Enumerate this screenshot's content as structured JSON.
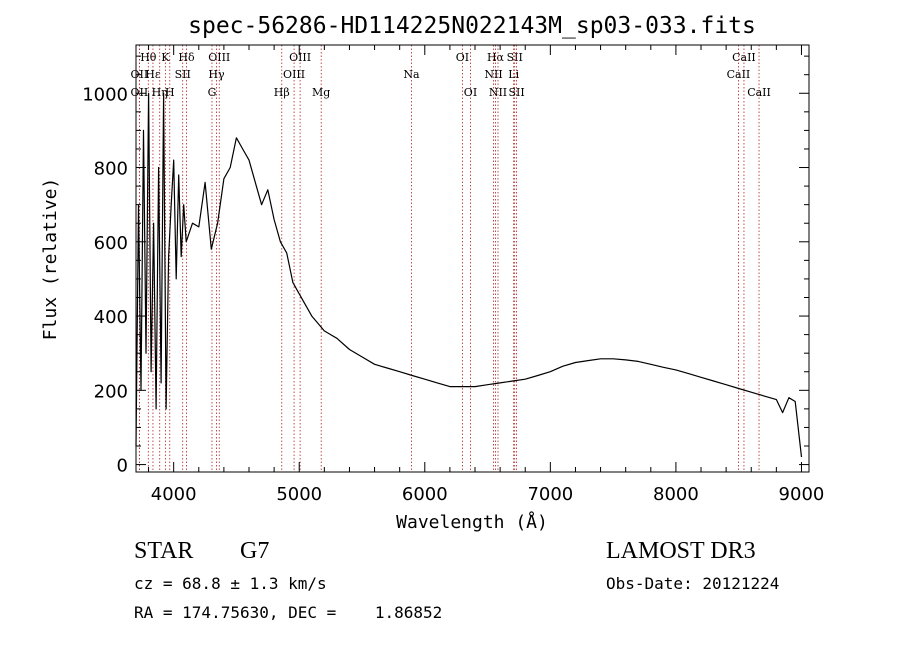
{
  "chart_data": {
    "type": "line",
    "title": "spec-56286-HD114225N022143M_sp03-033.fits",
    "xlabel": "Wavelength (Å)",
    "ylabel": "Flux (relative)",
    "xlim": [
      3700,
      9060
    ],
    "ylim": [
      -20,
      1130
    ],
    "x_ticks": [
      4000,
      5000,
      6000,
      7000,
      8000,
      9000
    ],
    "y_ticks": [
      0,
      200,
      400,
      600,
      800,
      1000
    ],
    "grid": false,
    "series": [
      {
        "name": "flux",
        "x": [
          3700,
          3720,
          3740,
          3760,
          3780,
          3800,
          3820,
          3840,
          3860,
          3880,
          3900,
          3920,
          3940,
          3960,
          3980,
          4000,
          4020,
          4040,
          4060,
          4080,
          4100,
          4150,
          4200,
          4250,
          4300,
          4350,
          4400,
          4450,
          4500,
          4550,
          4600,
          4650,
          4700,
          4750,
          4800,
          4850,
          4900,
          4950,
          5000,
          5050,
          5100,
          5150,
          5200,
          5250,
          5300,
          5400,
          5500,
          5600,
          5700,
          5800,
          5900,
          6000,
          6100,
          6200,
          6300,
          6400,
          6500,
          6600,
          6700,
          6800,
          6900,
          7000,
          7100,
          7200,
          7300,
          7400,
          7500,
          7600,
          7700,
          7800,
          7900,
          8000,
          8100,
          8200,
          8300,
          8400,
          8500,
          8600,
          8700,
          8800,
          8850,
          8900,
          8950,
          9000
        ],
        "y": [
          50,
          700,
          200,
          900,
          300,
          1000,
          250,
          650,
          150,
          800,
          220,
          1000,
          150,
          560,
          700,
          820,
          500,
          780,
          560,
          700,
          600,
          650,
          640,
          760,
          580,
          650,
          770,
          800,
          880,
          850,
          820,
          760,
          700,
          740,
          660,
          600,
          570,
          490,
          460,
          430,
          400,
          380,
          360,
          350,
          340,
          310,
          290,
          270,
          260,
          250,
          240,
          230,
          220,
          210,
          210,
          210,
          215,
          220,
          225,
          230,
          240,
          250,
          265,
          275,
          280,
          285,
          285,
          282,
          278,
          270,
          262,
          255,
          245,
          235,
          225,
          215,
          205,
          195,
          185,
          175,
          140,
          180,
          170,
          20
        ]
      }
    ],
    "line_markers": [
      {
        "label": "Hθ",
        "x": 3798,
        "row": 1
      },
      {
        "label": "OII",
        "x": 3727,
        "row": 2
      },
      {
        "label": "OII",
        "x": 3727,
        "row": 3
      },
      {
        "label": "Hε",
        "x": 3835,
        "row": 2
      },
      {
        "label": "Hη",
        "x": 3889,
        "row": 3
      },
      {
        "label": "K",
        "x": 3934,
        "row": 1
      },
      {
        "label": "SII",
        "x": 4072,
        "row": 2
      },
      {
        "label": "H",
        "x": 3969,
        "row": 3
      },
      {
        "label": "Hδ",
        "x": 4102,
        "row": 1
      },
      {
        "label": "OIII",
        "x": 4363,
        "row": 1
      },
      {
        "label": "Hγ",
        "x": 4341,
        "row": 2
      },
      {
        "label": "G",
        "x": 4305,
        "row": 3
      },
      {
        "label": "Hβ",
        "x": 4861,
        "row": 3
      },
      {
        "label": "OIII",
        "x": 5007,
        "row": 1
      },
      {
        "label": "OIII",
        "x": 4959,
        "row": 2
      },
      {
        "label": "Mg",
        "x": 5175,
        "row": 3
      },
      {
        "label": "Na",
        "x": 5894,
        "row": 2
      },
      {
        "label": "OI",
        "x": 6300,
        "row": 1
      },
      {
        "label": "OI",
        "x": 6364,
        "row": 3
      },
      {
        "label": "Hα",
        "x": 6563,
        "row": 1
      },
      {
        "label": "SII",
        "x": 6716,
        "row": 1
      },
      {
        "label": "NII",
        "x": 6548,
        "row": 2
      },
      {
        "label": "Li",
        "x": 6708,
        "row": 2
      },
      {
        "label": "NII",
        "x": 6583,
        "row": 3
      },
      {
        "label": "SII",
        "x": 6731,
        "row": 3
      },
      {
        "label": "CaII",
        "x": 8542,
        "row": 1
      },
      {
        "label": "CaII",
        "x": 8498,
        "row": 2
      },
      {
        "label": "CaII",
        "x": 8662,
        "row": 3
      }
    ]
  },
  "info": {
    "class": "STAR",
    "subclass": "G7",
    "survey": "LAMOST DR3",
    "redshift": "cz = 68.8 ± 1.3 km/s",
    "obs_date": "Obs-Date: 20121224",
    "coords": "RA = 174.75630, DEC =    1.86852"
  },
  "colors": {
    "spectrum": "#000000",
    "marker_lines": "#b22222",
    "axes": "#000000"
  }
}
